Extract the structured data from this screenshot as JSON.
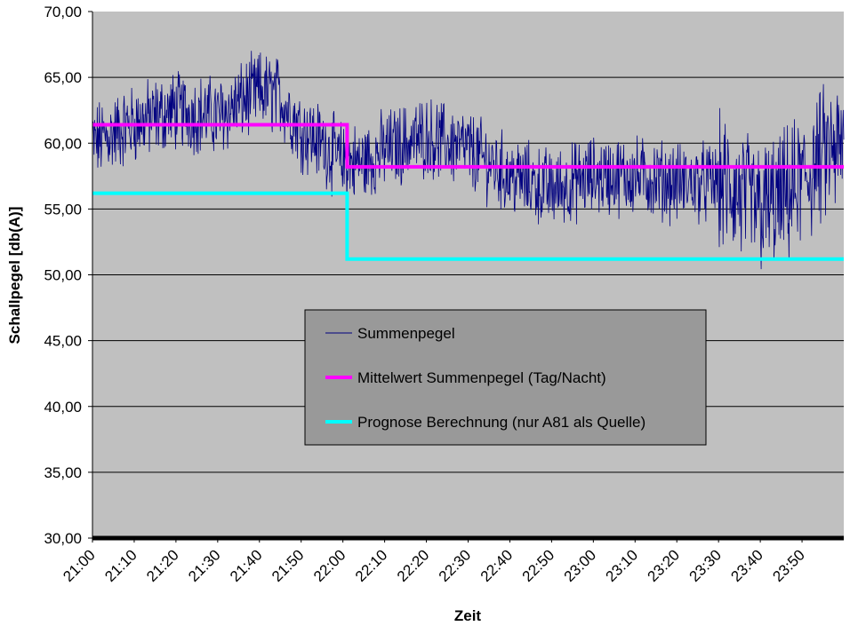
{
  "chart_data": {
    "type": "line",
    "title": "",
    "xlabel": "Zeit",
    "ylabel": "Schallpegel [db(A)]",
    "ylim": [
      30,
      70
    ],
    "y_ticks": [
      "30,00",
      "35,00",
      "40,00",
      "45,00",
      "50,00",
      "55,00",
      "60,00",
      "65,00",
      "70,00"
    ],
    "x_ticks": [
      "21:00",
      "21:10",
      "21:20",
      "21:30",
      "21:40",
      "21:50",
      "22:00",
      "22:10",
      "22:20",
      "22:30",
      "22:40",
      "22:50",
      "23:00",
      "23:10",
      "23:20",
      "23:30",
      "23:40",
      "23:50"
    ],
    "xlim": [
      "21:00",
      "24:00"
    ],
    "grid": "horizontal",
    "plot_background": "#c0c0c0",
    "legend_position": "center",
    "series": [
      {
        "name": "Summenpegel",
        "color": "#000080",
        "style": "noisy",
        "x": [
          "21:00",
          "21:10",
          "21:20",
          "21:30",
          "21:35",
          "21:40",
          "21:45",
          "21:50",
          "21:55",
          "22:00",
          "22:05",
          "22:10",
          "22:20",
          "22:30",
          "22:40",
          "22:50",
          "23:00",
          "23:10",
          "23:20",
          "23:30",
          "23:40",
          "23:45",
          "23:50",
          "23:55",
          "24:00"
        ],
        "values": [
          60.0,
          61.5,
          62.5,
          62.0,
          63.0,
          64.0,
          63.5,
          61.0,
          60.0,
          58.5,
          58.5,
          59.5,
          60.5,
          59.5,
          57.5,
          56.5,
          57.5,
          57.5,
          57.0,
          57.0,
          55.0,
          55.5,
          57.0,
          59.0,
          59.5
        ]
      },
      {
        "name": "Mittelwert Summenpegel (Tag/Nacht)",
        "color": "#ff00ff",
        "style": "step",
        "x": [
          "21:00",
          "22:01",
          "22:01",
          "24:00"
        ],
        "values": [
          61.4,
          61.4,
          58.2,
          58.2
        ]
      },
      {
        "name": "Prognose Berechnung (nur A81 als Quelle)",
        "color": "#00ffff",
        "style": "step",
        "x": [
          "21:00",
          "22:01",
          "22:01",
          "24:00"
        ],
        "values": [
          56.2,
          56.2,
          51.2,
          51.2
        ]
      }
    ]
  }
}
